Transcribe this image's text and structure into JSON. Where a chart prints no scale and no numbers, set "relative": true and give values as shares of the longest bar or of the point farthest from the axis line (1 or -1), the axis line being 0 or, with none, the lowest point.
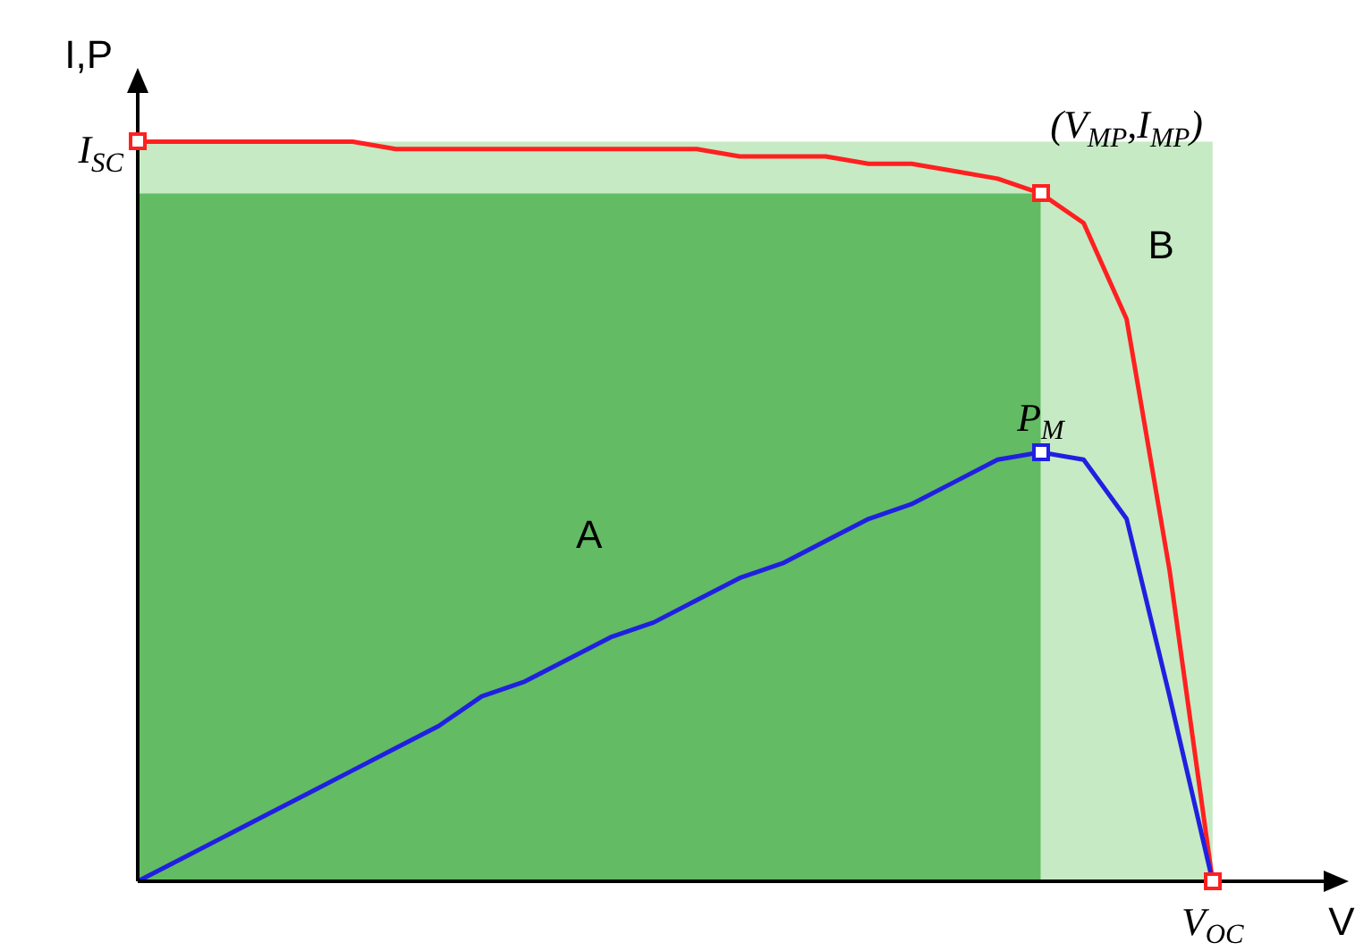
{
  "chart_data": {
    "type": "line",
    "relative": true,
    "xlabel": "V",
    "ylabel": "I,P",
    "tick_labels": false,
    "grid": false,
    "legend": false,
    "categories": [
      null,
      null,
      null,
      null,
      null,
      null,
      null,
      null,
      null,
      null,
      null,
      null,
      null,
      null,
      null,
      null,
      null,
      null,
      null,
      null,
      null,
      null,
      null,
      null,
      null,
      null,
      null,
      null,
      null
    ],
    "series": [
      {
        "color": "#ff2020",
        "values": [
          1,
          1,
          1,
          1,
          1,
          1,
          0.99,
          0.99,
          0.99,
          0.99,
          0.99,
          0.99,
          0.99,
          0.99,
          0.98,
          0.98,
          0.98,
          0.97,
          0.97,
          0.96,
          0.95,
          0.93,
          0.89,
          0.76,
          0.42,
          0,
          null,
          null,
          null
        ]
      },
      {
        "color": "#2020e0",
        "values": [
          0,
          0.03,
          0.06,
          0.09,
          0.12,
          0.15,
          0.18,
          0.21,
          0.25,
          0.27,
          0.3,
          0.33,
          0.35,
          0.38,
          0.41,
          0.43,
          0.46,
          0.49,
          0.51,
          0.54,
          0.57,
          0.58,
          0.57,
          0.49,
          0.25,
          0,
          null,
          null,
          null
        ]
      }
    ],
    "annotations": [
      "I$_{SC}$",
      "(V$_{MP}$,I$_{MP}$)",
      "P$_{M}$",
      "V$_{OC}$",
      "A",
      "B"
    ]
  }
}
